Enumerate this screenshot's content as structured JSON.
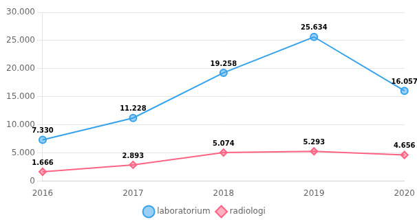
{
  "chart_data": {
    "type": "line",
    "categories": [
      "2016",
      "2017",
      "2018",
      "2019",
      "2020"
    ],
    "series": [
      {
        "name": "laboratorium",
        "marker": "circle",
        "values": [
          7330,
          11228,
          19258,
          25634,
          16057
        ],
        "value_labels": [
          "7.330",
          "11.228",
          "19.258",
          "25.634",
          "16.057"
        ]
      },
      {
        "name": "radiologi",
        "marker": "diamond",
        "values": [
          1666,
          2893,
          5074,
          5293,
          4656
        ],
        "value_labels": [
          "1.666",
          "2.893",
          "5.074",
          "5.293",
          "4.656"
        ]
      }
    ],
    "ylim": [
      0,
      30000
    ],
    "yticks": [
      0,
      {
        "value": 5000,
        "label": "5.000"
      },
      {
        "value": 10000,
        "label": "10.000"
      },
      {
        "value": 15000,
        "label": "15.000"
      },
      {
        "value": 20000,
        "label": "20.000"
      },
      {
        "value": 25000,
        "label": "25.000"
      },
      {
        "value": 30000,
        "label": "30.000"
      }
    ],
    "grid": "y",
    "legend": "bottom",
    "data_labels": true
  }
}
